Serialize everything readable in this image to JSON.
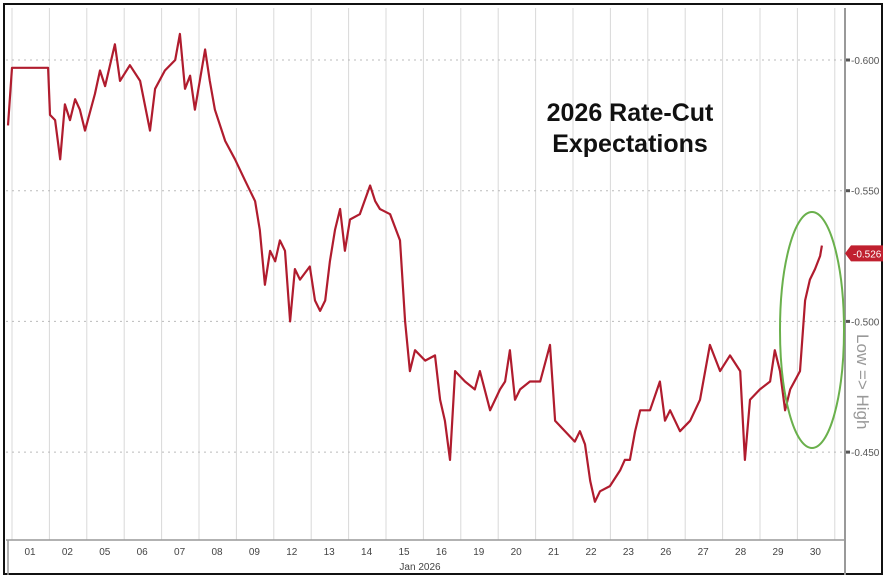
{
  "chart_data": {
    "type": "line",
    "title": "2026 Rate-Cut Expectations",
    "xlabel": "Jan 2026",
    "ylabel": "Low => High",
    "y_axis_inverted": true,
    "ylim": [
      -0.62,
      -0.42
    ],
    "yticks": [
      "-0.600",
      "-0.550",
      "-0.500",
      "-0.450"
    ],
    "ytick_values": [
      -0.6,
      -0.55,
      -0.5,
      -0.45
    ],
    "xtick_labels": [
      "01",
      "02",
      "05",
      "06",
      "07",
      "08",
      "09",
      "12",
      "13",
      "14",
      "15",
      "16",
      "19",
      "20",
      "21",
      "22",
      "23",
      "26",
      "27",
      "28",
      "29",
      "30"
    ],
    "last_value_label": "-0.526",
    "last_value": -0.526,
    "annotation": "green ellipse around late-January surge",
    "series": [
      {
        "name": "2026 Rate-Cut Expectations",
        "color": "#b01c2e",
        "x": [
          -0.11,
          0,
          0.99,
          1.04,
          1.18,
          1.32,
          1.45,
          1.59,
          1.73,
          1.86,
          2.0,
          2.27,
          2.41,
          2.55,
          2.82,
          2.96,
          3.23,
          3.51,
          3.78,
          3.92,
          4.19,
          4.47,
          4.6,
          4.74,
          4.88,
          5.01,
          5.29,
          5.42,
          5.56,
          5.84,
          6.11,
          6.38,
          6.66,
          6.79,
          6.93,
          7.07,
          7.21,
          7.34,
          7.48,
          7.62,
          7.75,
          7.89,
          8.16,
          8.3,
          8.44,
          8.58,
          8.71,
          8.85,
          8.99,
          9.12,
          9.26,
          9.53,
          9.81,
          9.95,
          10.08,
          10.36,
          10.63,
          10.77,
          10.9,
          11.04,
          11.32,
          11.59,
          11.73,
          11.86,
          12.0,
          12.14,
          12.41,
          12.68,
          12.82,
          13.1,
          13.37,
          13.51,
          13.64,
          13.78,
          13.92,
          14.19,
          14.47,
          14.74,
          14.88,
          15.15,
          15.42,
          15.56,
          15.7,
          15.84,
          15.97,
          16.11,
          16.38,
          16.66,
          16.79,
          16.93,
          17.07,
          17.21,
          17.48,
          17.75,
          17.89,
          18.03,
          18.3,
          18.58,
          18.85,
          19.12,
          19.4,
          19.67,
          19.95,
          20.08,
          20.22,
          20.49,
          20.77,
          20.9,
          21.04,
          21.18,
          21.32,
          21.59,
          21.73,
          21.86,
          22.0,
          22.14,
          22.19
        ],
        "y": [
          -0.575,
          -0.597,
          -0.597,
          -0.579,
          -0.577,
          -0.562,
          -0.583,
          -0.577,
          -0.585,
          -0.581,
          -0.573,
          -0.587,
          -0.596,
          -0.59,
          -0.606,
          -0.592,
          -0.598,
          -0.592,
          -0.573,
          -0.589,
          -0.596,
          -0.6,
          -0.61,
          -0.589,
          -0.594,
          -0.581,
          -0.604,
          -0.592,
          -0.581,
          -0.569,
          -0.562,
          -0.554,
          -0.546,
          -0.535,
          -0.514,
          -0.527,
          -0.523,
          -0.531,
          -0.527,
          -0.5,
          -0.52,
          -0.516,
          -0.521,
          -0.508,
          -0.504,
          -0.508,
          -0.523,
          -0.535,
          -0.543,
          -0.527,
          -0.539,
          -0.541,
          -0.552,
          -0.546,
          -0.543,
          -0.541,
          -0.531,
          -0.5,
          -0.481,
          -0.489,
          -0.485,
          -0.487,
          -0.47,
          -0.462,
          -0.447,
          -0.481,
          -0.477,
          -0.474,
          -0.481,
          -0.466,
          -0.474,
          -0.477,
          -0.489,
          -0.47,
          -0.474,
          -0.477,
          -0.477,
          -0.491,
          -0.462,
          -0.458,
          -0.454,
          -0.458,
          -0.453,
          -0.439,
          -0.431,
          -0.435,
          -0.437,
          -0.443,
          -0.447,
          -0.447,
          -0.458,
          -0.466,
          -0.466,
          -0.477,
          -0.462,
          -0.466,
          -0.458,
          -0.462,
          -0.47,
          -0.491,
          -0.481,
          -0.487,
          -0.481,
          -0.447,
          -0.47,
          -0.474,
          -0.477,
          -0.489,
          -0.481,
          -0.466,
          -0.474,
          -0.481,
          -0.508,
          -0.516,
          -0.52,
          -0.525,
          -0.529
        ]
      }
    ]
  }
}
